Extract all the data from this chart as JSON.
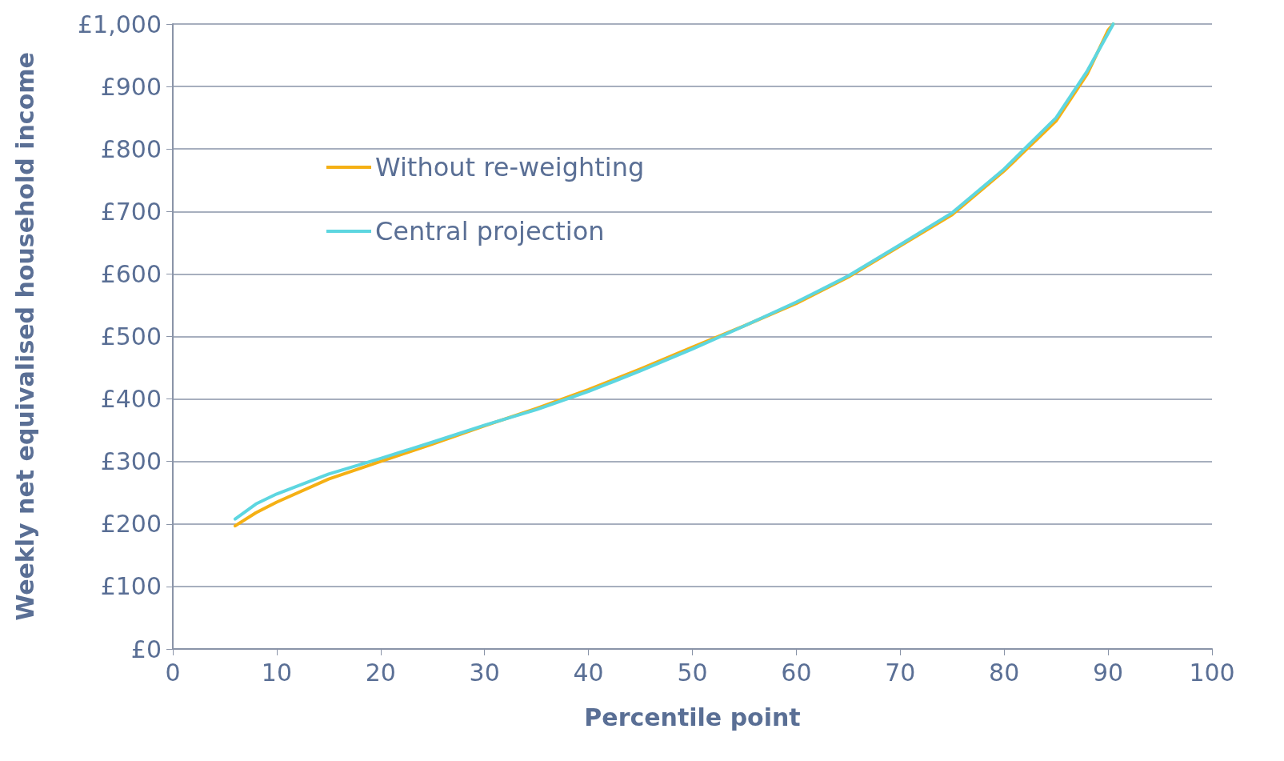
{
  "chart_data": {
    "type": "line",
    "xlabel": "Percentile point",
    "ylabel": "Weekly net equivalised household income",
    "xlim": [
      0,
      100
    ],
    "xticks": [
      0,
      10,
      20,
      30,
      40,
      50,
      60,
      70,
      80,
      90,
      100
    ],
    "ylim": [
      0,
      1000
    ],
    "yticks": [
      {
        "value": 0,
        "label": "£0"
      },
      {
        "value": 100,
        "label": "£100"
      },
      {
        "value": 200,
        "label": "£200"
      },
      {
        "value": 300,
        "label": "£300"
      },
      {
        "value": 400,
        "label": "£400"
      },
      {
        "value": 500,
        "label": "£500"
      },
      {
        "value": 600,
        "label": "£600"
      },
      {
        "value": 700,
        "label": "£700"
      },
      {
        "value": 800,
        "label": "£800"
      },
      {
        "value": 900,
        "label": "£900"
      },
      {
        "value": 1000,
        "label": "£1,000"
      }
    ],
    "grid": "y",
    "legend": "top left",
    "marker": "none",
    "line_style": "solid",
    "x": [
      6,
      8,
      10,
      15,
      20,
      25,
      30,
      35,
      40,
      45,
      50,
      55,
      60,
      65,
      70,
      75,
      80,
      85,
      88,
      90,
      90.5
    ],
    "series": [
      {
        "name": "Without re-weighting",
        "color": "#f5b014",
        "values": [
          197,
          218,
          235,
          272,
          300,
          328,
          357,
          385,
          415,
          448,
          483,
          517,
          553,
          595,
          645,
          695,
          765,
          845,
          920,
          990,
          1000
        ]
      },
      {
        "name": "Central projection",
        "color": "#5dd6e0",
        "values": [
          208,
          232,
          248,
          280,
          305,
          331,
          358,
          383,
          412,
          445,
          480,
          517,
          555,
          597,
          647,
          698,
          768,
          850,
          925,
          985,
          1000
        ]
      }
    ]
  }
}
